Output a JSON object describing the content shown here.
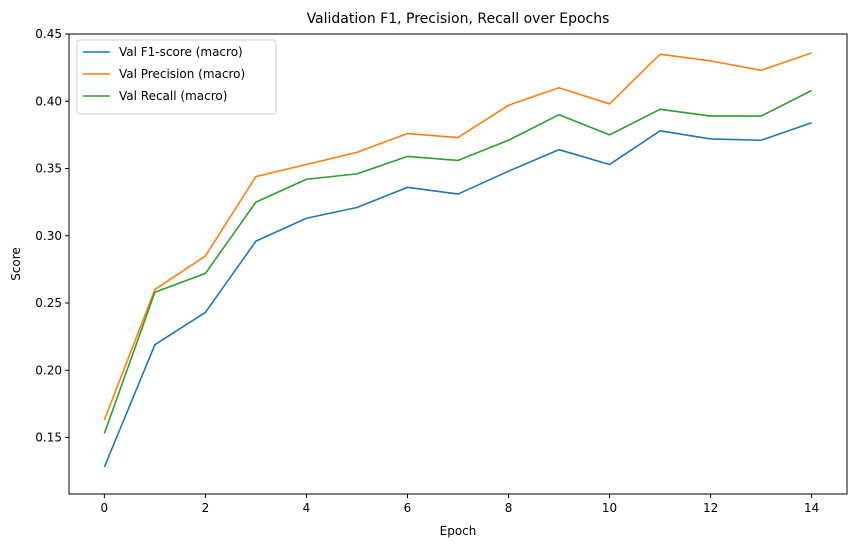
{
  "chart_data": {
    "type": "line",
    "title": "Validation F1, Precision, Recall over Epochs",
    "xlabel": "Epoch",
    "ylabel": "Score",
    "xlim": [
      -0.7,
      14.7
    ],
    "ylim": [
      0.108,
      0.45
    ],
    "xticks": [
      0,
      2,
      4,
      6,
      8,
      10,
      12,
      14
    ],
    "yticks": [
      0.15,
      0.2,
      0.25,
      0.3,
      0.35,
      0.4,
      0.45
    ],
    "ytick_labels": [
      "0.15",
      "0.20",
      "0.25",
      "0.30",
      "0.35",
      "0.40",
      "0.45"
    ],
    "grid": false,
    "legend_position": "top-left",
    "x": [
      0,
      1,
      2,
      3,
      4,
      5,
      6,
      7,
      8,
      9,
      10,
      11,
      12,
      13,
      14
    ],
    "series": [
      {
        "name": "Val F1-score (macro)",
        "color": "#1f77b4",
        "values": [
          0.128,
          0.219,
          0.243,
          0.296,
          0.313,
          0.321,
          0.336,
          0.331,
          0.348,
          0.364,
          0.353,
          0.378,
          0.372,
          0.371,
          0.384
        ]
      },
      {
        "name": "Val Precision (macro)",
        "color": "#ff7f0e",
        "values": [
          0.163,
          0.26,
          0.285,
          0.344,
          0.353,
          0.362,
          0.376,
          0.373,
          0.397,
          0.41,
          0.398,
          0.435,
          0.43,
          0.423,
          0.436
        ]
      },
      {
        "name": "Val Recall (macro)",
        "color": "#2ca02c",
        "values": [
          0.153,
          0.258,
          0.272,
          0.325,
          0.342,
          0.346,
          0.359,
          0.356,
          0.371,
          0.39,
          0.375,
          0.394,
          0.389,
          0.389,
          0.408
        ]
      }
    ]
  }
}
